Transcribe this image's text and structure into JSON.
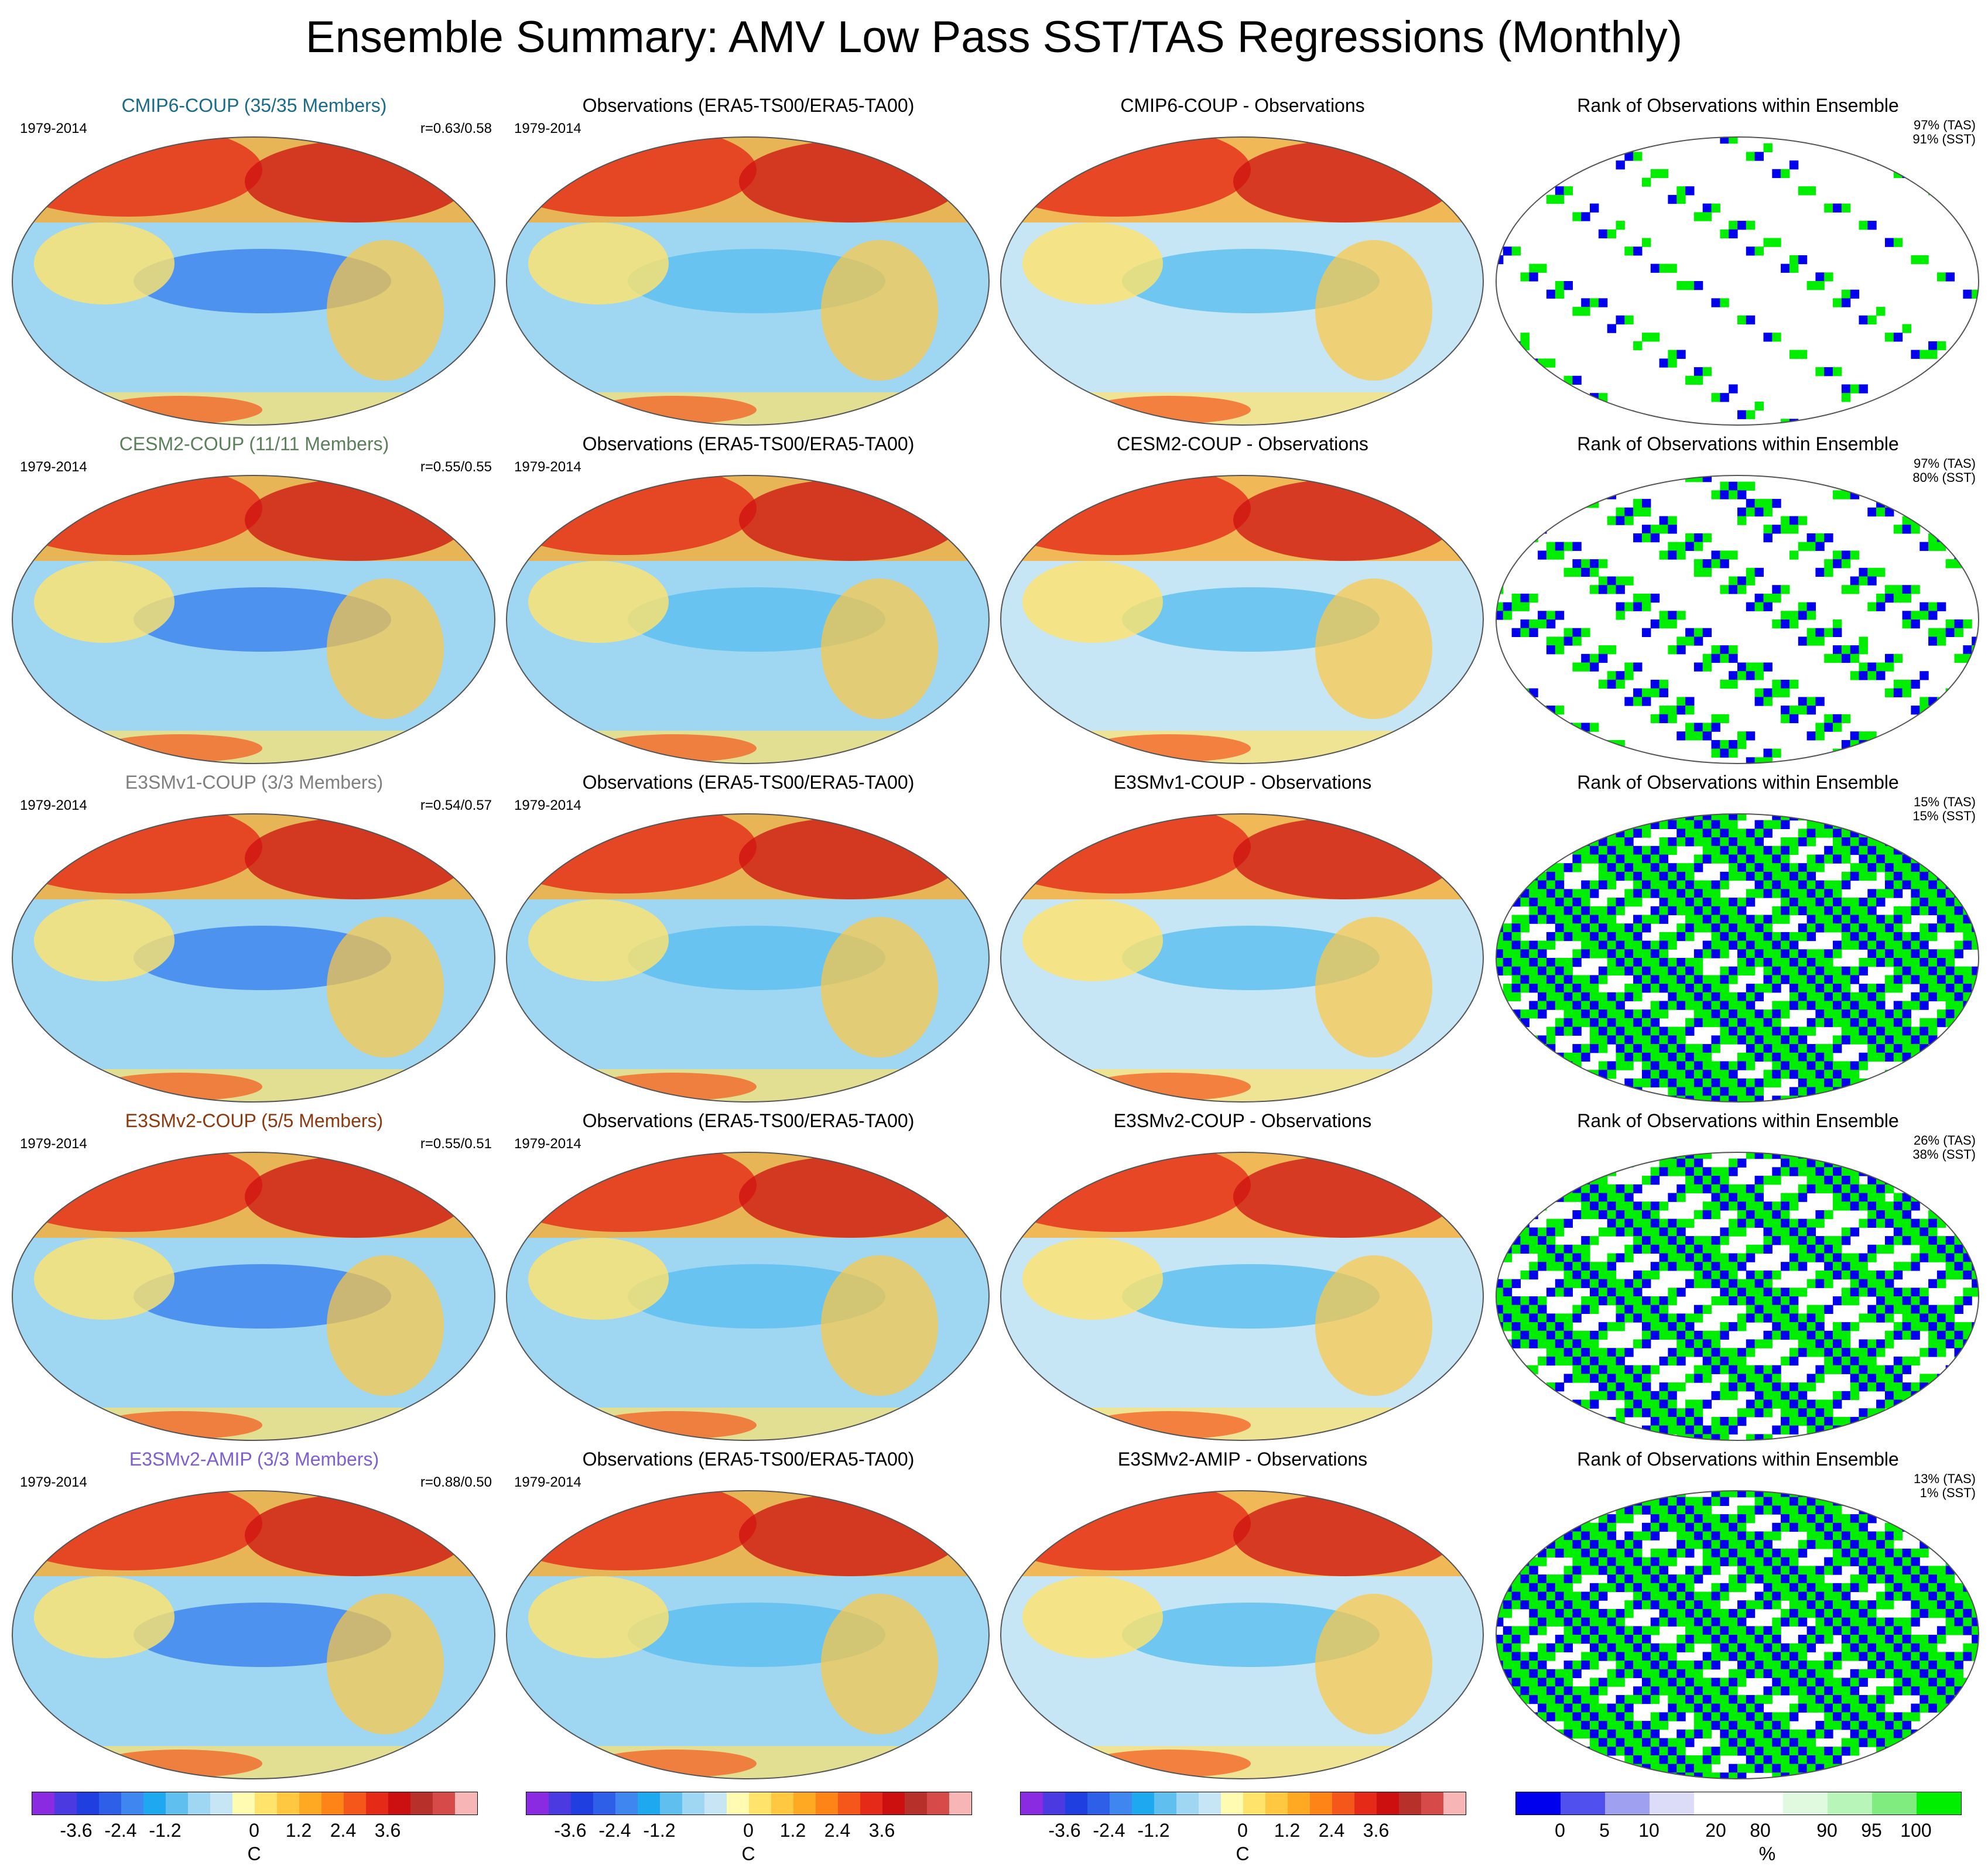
{
  "title": "Ensemble Summary: AMV Low Pass SST/TAS Regressions (Monthly)",
  "period": "1979-2014",
  "colors": {
    "cmip6": "#1a6b8a",
    "cesm2": "#5b7f5b",
    "e3smv1": "#7f7f7f",
    "e3smv2": "#8b3a10",
    "amip": "#7f5fd0",
    "rank_low": "#0000ee",
    "rank_high": "#00ee00"
  },
  "rows": [
    {
      "model": {
        "title": "CMIP6-COUP (35/35 Members)",
        "corr": "r=0.63/0.58",
        "color_key": "cmip6"
      },
      "obs": {
        "title": "Observations (ERA5-TS00/ERA5-TA00)"
      },
      "diff": {
        "title": "CMIP6-COUP - Observations"
      },
      "rank": {
        "title": "Rank of Observations within Ensemble",
        "tas": "97% (TAS)",
        "sst": "91% (SST)",
        "fill": 0.2
      }
    },
    {
      "model": {
        "title": "CESM2-COUP (11/11 Members)",
        "corr": "r=0.55/0.55",
        "color_key": "cesm2"
      },
      "obs": {
        "title": "Observations (ERA5-TS00/ERA5-TA00)"
      },
      "diff": {
        "title": "CESM2-COUP - Observations"
      },
      "rank": {
        "title": "Rank of Observations within Ensemble",
        "tas": "97% (TAS)",
        "sst": "80% (SST)",
        "fill": 0.45
      }
    },
    {
      "model": {
        "title": "E3SMv1-COUP (3/3 Members)",
        "corr": "r=0.54/0.57",
        "color_key": "e3smv1"
      },
      "obs": {
        "title": "Observations (ERA5-TS00/ERA5-TA00)"
      },
      "diff": {
        "title": "E3SMv1-COUP - Observations"
      },
      "rank": {
        "title": "Rank of Observations within Ensemble",
        "tas": "15% (TAS)",
        "sst": "15% (SST)",
        "fill": 0.97
      }
    },
    {
      "model": {
        "title": "E3SMv2-COUP (5/5 Members)",
        "corr": "r=0.55/0.51",
        "color_key": "e3smv2"
      },
      "obs": {
        "title": "Observations (ERA5-TS00/ERA5-TA00)"
      },
      "diff": {
        "title": "E3SMv2-COUP - Observations"
      },
      "rank": {
        "title": "Rank of Observations within Ensemble",
        "tas": "26% (TAS)",
        "sst": "38% (SST)",
        "fill": 0.8
      }
    },
    {
      "model": {
        "title": "E3SMv2-AMIP (3/3 Members)",
        "corr": "r=0.88/0.50",
        "color_key": "amip"
      },
      "obs": {
        "title": "Observations (ERA5-TS00/ERA5-TA00)"
      },
      "diff": {
        "title": "E3SMv2-AMIP - Observations"
      },
      "rank": {
        "title": "Rank of Observations within Ensemble",
        "tas": "13% (TAS)",
        "sst": "1% (SST)",
        "fill": 0.99
      }
    }
  ],
  "colorbars": {
    "temperature": {
      "colors": [
        "#8a2be2",
        "#4b3ae0",
        "#1f3fe0",
        "#2d5fe8",
        "#3f86f0",
        "#1ea8f0",
        "#5fc0f0",
        "#9fd6f2",
        "#c6e6f6",
        "#fffbb0",
        "#ffe36b",
        "#ffc840",
        "#ffa822",
        "#ff8418",
        "#f5561a",
        "#e52a18",
        "#cc1010",
        "#b8302a",
        "#d64a4a",
        "#f8b5b5"
      ],
      "ticks": [
        "-3.6",
        "-2.4",
        "-1.2",
        "0",
        "1.2",
        "2.4",
        "3.6"
      ],
      "tick_pos": [
        0.1,
        0.2,
        0.3,
        0.5,
        0.6,
        0.7,
        0.8
      ],
      "unit": "C"
    },
    "rank": {
      "colors": [
        "#0000ee",
        "#5050ee",
        "#a0a0f0",
        "#dcdcf8",
        "#ffffff",
        "#ffffff",
        "#e0fae0",
        "#b8f5b8",
        "#80ec80",
        "#00ee00"
      ],
      "ticks": [
        "0",
        "5",
        "10",
        "20",
        "80",
        "90",
        "95",
        "100"
      ],
      "tick_pos": [
        0.1,
        0.2,
        0.3,
        0.45,
        0.55,
        0.7,
        0.8,
        0.9
      ],
      "unit": "%"
    }
  }
}
